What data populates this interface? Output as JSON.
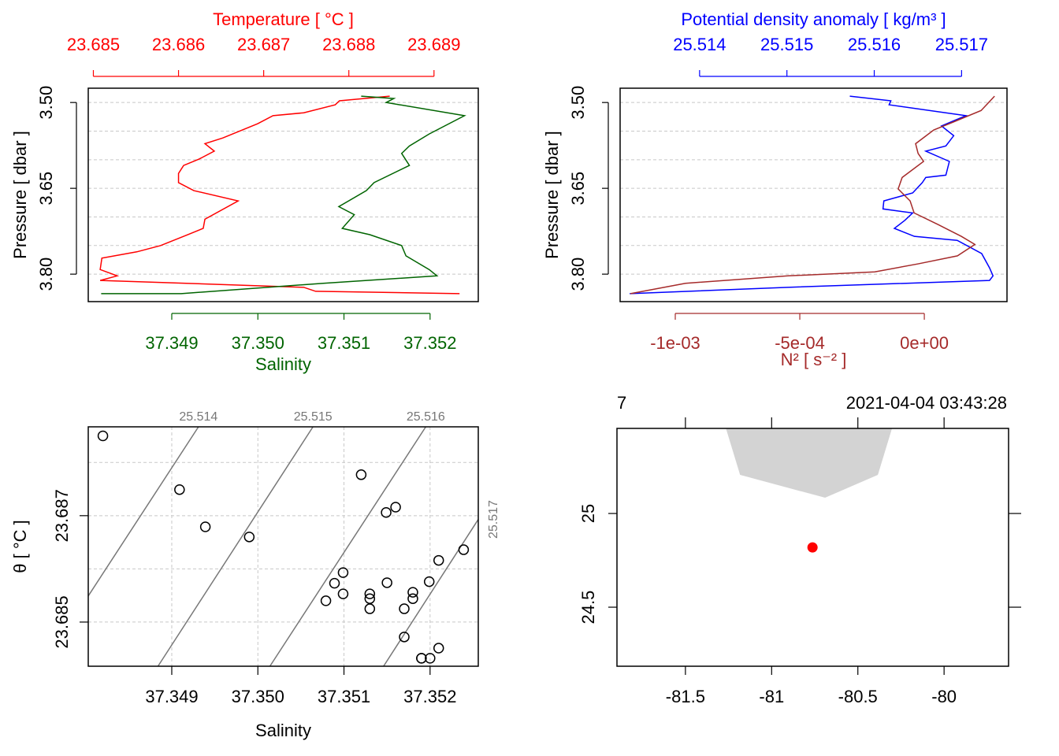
{
  "chart_data": [
    {
      "type": "profile",
      "ylabel": "Pressure [ dbar ]",
      "ylim": [
        3.848,
        3.475
      ],
      "yticks": [
        {
          "value": 3.5,
          "label": "3.50"
        },
        3.65,
        {
          "value": 3.8,
          "label": "3.80"
        }
      ],
      "ygrid": [
        3.5,
        3.55,
        3.6,
        3.65,
        3.7,
        3.75,
        3.8
      ],
      "series": [
        {
          "name": "Temperature [ °C ]",
          "color": "#ff0000",
          "axis": "top",
          "xlim": [
            23.68494,
            23.68952
          ],
          "xticks": [
            23.685,
            23.686,
            23.687,
            23.688,
            23.689
          ],
          "values": [
            23.68848,
            23.68789,
            23.68784,
            23.68747,
            23.68711,
            23.68693,
            23.68652,
            23.68631,
            23.68642,
            23.68624,
            23.68606,
            23.686,
            23.686,
            23.68618,
            23.6867,
            23.68631,
            23.68629,
            23.68611,
            23.68579,
            23.68551,
            23.6851,
            23.68508,
            23.68528,
            23.68508,
            23.68747,
            23.68761,
            23.6893
          ],
          "pressure": [
            3.489,
            3.497,
            3.504,
            3.518,
            3.523,
            3.537,
            3.562,
            3.572,
            3.585,
            3.599,
            3.61,
            3.624,
            3.64,
            3.654,
            3.672,
            3.704,
            3.72,
            3.731,
            3.75,
            3.761,
            3.772,
            3.792,
            3.803,
            3.811,
            3.823,
            3.83,
            3.834
          ]
        },
        {
          "name": "Salinity",
          "color": "#006400",
          "axis": "bottom",
          "xlim": [
            37.34803,
            37.35256
          ],
          "xticks": [
            37.349,
            {
              "value": 37.35,
              "label": "37.350"
            },
            37.351,
            37.352
          ],
          "values": [
            37.3512,
            37.35158,
            37.35149,
            37.3524,
            37.35199,
            37.35176,
            37.35167,
            37.35176,
            37.35135,
            37.35126,
            37.35094,
            37.35112,
            37.35098,
            37.3513,
            37.35167,
            37.35172,
            37.35199,
            37.35208,
            37.35076,
            37.34911,
            37.34818
          ],
          "pressure": [
            3.489,
            3.493,
            3.5,
            3.523,
            3.555,
            3.576,
            3.589,
            3.61,
            3.64,
            3.654,
            3.682,
            3.696,
            3.72,
            3.731,
            3.75,
            3.768,
            3.792,
            3.803,
            3.816,
            3.834,
            3.834
          ]
        }
      ]
    },
    {
      "type": "profile",
      "ylabel": "Pressure [ dbar ]",
      "ylim": [
        3.848,
        3.475
      ],
      "yticks": [
        {
          "value": 3.5,
          "label": "3.50"
        },
        3.65,
        {
          "value": 3.8,
          "label": "3.80"
        }
      ],
      "ygrid": [
        3.5,
        3.55,
        3.6,
        3.65,
        3.7,
        3.75,
        3.8
      ],
      "series": [
        {
          "name": "Potential density anomaly [ kg/m³ ]",
          "color": "#0000ff",
          "axis": "top",
          "xlim": [
            25.51309,
            25.51752
          ],
          "xticks": [
            25.514,
            25.515,
            25.516,
            25.517
          ],
          "values": [
            25.51572,
            25.51619,
            25.51617,
            25.51705,
            25.51677,
            25.51691,
            25.51682,
            25.51659,
            25.51686,
            25.51682,
            25.51659,
            25.51655,
            25.51644,
            25.51611,
            25.5161,
            25.51644,
            25.51635,
            25.51623,
            25.51646,
            25.51695,
            25.51723,
            25.51732,
            25.51736,
            25.51732,
            25.51501,
            25.5132
          ],
          "pressure": [
            3.489,
            3.497,
            3.504,
            3.523,
            3.541,
            3.558,
            3.576,
            3.585,
            3.603,
            3.627,
            3.631,
            3.64,
            3.658,
            3.672,
            3.686,
            3.693,
            3.706,
            3.72,
            3.734,
            3.741,
            3.764,
            3.789,
            3.803,
            3.811,
            3.823,
            3.834
          ]
        },
        {
          "name": "N² [ s⁻² ]",
          "color": "#a52a2a",
          "axis": "bottom",
          "xlim": [
            -0.0012215,
            0.000332
          ],
          "xticks": [
            {
              "value": -0.001,
              "label": "-1e-03"
            },
            {
              "value": -0.0005,
              "label": "-5e-04"
            },
            {
              "value": 0,
              "label": "0e+00"
            }
          ],
          "values": [
            0.000282,
            0.000228,
            0.000117,
            3.8e-05,
            -3.5e-05,
            -2.5e-05,
            -3e-06,
            -8.9e-05,
            -0.000105,
            -5.7e-05,
            -4.1e-05,
            5.4e-05,
            0.000149,
            0.000203,
            0.000133,
            -2.5e-05,
            -0.000199,
            -0.000547,
            -0.000959,
            -0.00118
          ],
          "pressure": [
            3.489,
            3.514,
            3.534,
            3.548,
            3.572,
            3.589,
            3.603,
            3.631,
            3.651,
            3.672,
            3.693,
            3.713,
            3.734,
            3.748,
            3.768,
            3.782,
            3.796,
            3.803,
            3.816,
            3.834
          ]
        }
      ]
    },
    {
      "type": "scatter",
      "xlabel": "Salinity",
      "ylabel": "θ [ °C ]",
      "xlim": [
        37.34803,
        37.35256
      ],
      "xticks": [
        37.349,
        {
          "value": 37.35,
          "label": "37.350"
        },
        37.351,
        37.352
      ],
      "ylim": [
        23.68417,
        23.68867
      ],
      "yticks": [
        23.685,
        23.687
      ],
      "ygrid": [
        23.685,
        23.686,
        23.687,
        23.688
      ],
      "grid": true,
      "x": [
        37.3482,
        37.34909,
        37.34939,
        37.3499,
        37.3512,
        37.35149,
        37.3516,
        37.3521,
        37.35239,
        37.35099,
        37.35089,
        37.35099,
        37.35079,
        37.3513,
        37.3513,
        37.3513,
        37.3515,
        37.3518,
        37.3518,
        37.3517,
        37.35199,
        37.3517,
        37.3521,
        37.3519,
        37.3519,
        37.352
      ],
      "y": [
        23.6885,
        23.68749,
        23.68679,
        23.6866,
        23.68777,
        23.68706,
        23.68716,
        23.68616,
        23.68636,
        23.68593,
        23.68573,
        23.68553,
        23.6854,
        23.68553,
        23.68544,
        23.68525,
        23.68574,
        23.68556,
        23.68544,
        23.68525,
        23.68576,
        23.68472,
        23.68451,
        23.68432,
        23.68432,
        23.68432
      ],
      "isopycnals": [
        {
          "level": 25.514,
          "S": [
            37.34803,
            37.34931
          ],
          "T": [
            23.68549,
            23.68867
          ]
        },
        {
          "level": 25.515,
          "S": [
            37.34884,
            37.35064
          ],
          "T": [
            23.68417,
            23.68867
          ]
        },
        {
          "level": 25.516,
          "S": [
            37.35014,
            37.35195
          ],
          "T": [
            23.68417,
            23.68867
          ]
        },
        {
          "level": 25.517,
          "S": [
            37.35146,
            37.35256
          ],
          "T": [
            23.68417,
            23.68693
          ]
        }
      ]
    },
    {
      "type": "map",
      "title_left": "7",
      "title_right": "2021-04-04 03:43:28",
      "xlim": [
        -81.897,
        -79.626
      ],
      "xticks": [
        -81.5,
        -81,
        -80.5,
        -80
      ],
      "ylim": [
        24.185,
        25.454
      ],
      "yticks": [
        24.5,
        25
      ],
      "land": {
        "color": "#d3d3d3",
        "lon": [
          -81.265,
          -81.183,
          -80.69,
          -80.384,
          -80.302
        ],
        "lat": [
          25.454,
          25.206,
          25.084,
          25.206,
          25.454
        ]
      },
      "station": {
        "color": "#ff0000",
        "lon": -80.763,
        "lat": 24.819
      }
    }
  ]
}
